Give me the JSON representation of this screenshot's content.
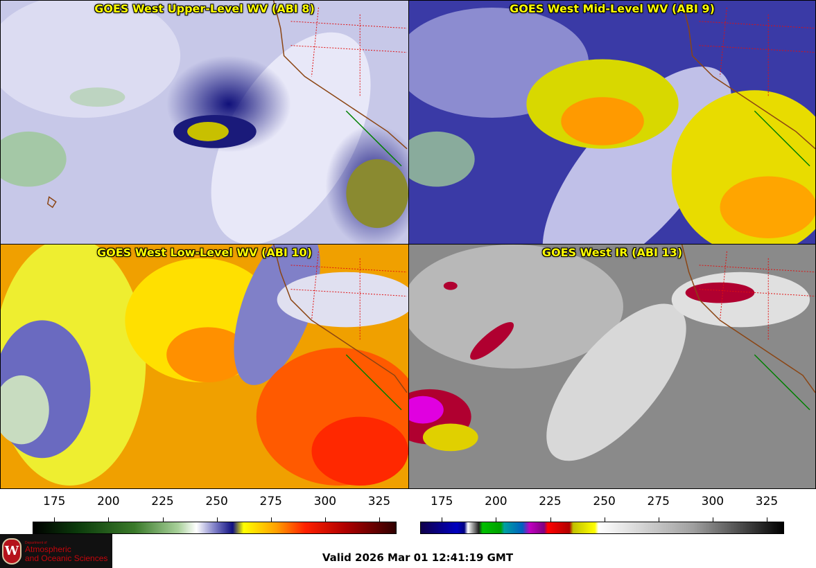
{
  "panels": [
    {
      "id": "upper",
      "title": "GOES West Upper-Level WV (ABI 8)"
    },
    {
      "id": "mid",
      "title": "GOES West Mid-Level WV (ABI 9)"
    },
    {
      "id": "low",
      "title": "GOES West Low-Level WV (ABI 10)"
    },
    {
      "id": "ir",
      "title": "GOES West IR (ABI 13)"
    }
  ],
  "colorbars": [
    {
      "id": "wv",
      "ticks": [
        "175",
        "200",
        "225",
        "250",
        "275",
        "300",
        "325"
      ],
      "min": 165,
      "max": 333,
      "stops": [
        "#000000 0%",
        "#0b3a0b 12%",
        "#3a7a2a 28%",
        "#a8d09a 40%",
        "#ffffff 45%",
        "#8080c8 50%",
        "#101080 55%",
        "#ffff00 58%",
        "#ffa000 67%",
        "#ff2000 75%",
        "#b00000 86%",
        "#300000 100%"
      ]
    },
    {
      "id": "ir",
      "ticks": [
        "175",
        "200",
        "225",
        "250",
        "275",
        "300",
        "325"
      ],
      "min": 165,
      "max": 333,
      "stops": [
        "#10004a 0%",
        "#0000c0 10%",
        "#000080 12%",
        "#ffffff 13%",
        "#202020 16%",
        "#00c000 17%",
        "#00a000 22%",
        "#00a0a0 23%",
        "#0060c0 28%",
        "#c000c0 30%",
        "#800080 34%",
        "#ff0000 35%",
        "#b00000 41%",
        "#c0c000 42%",
        "#ffff00 48%",
        "#ffffff 49%",
        "#a0a0a0 75%",
        "#000000 100%"
      ]
    }
  ],
  "footer": {
    "valid": "Valid 2026 Mar 01 12:41:19 GMT",
    "logo_dept": "Department of",
    "logo_line1": "Atmospheric",
    "logo_line2": "and Oceanic Sciences"
  }
}
